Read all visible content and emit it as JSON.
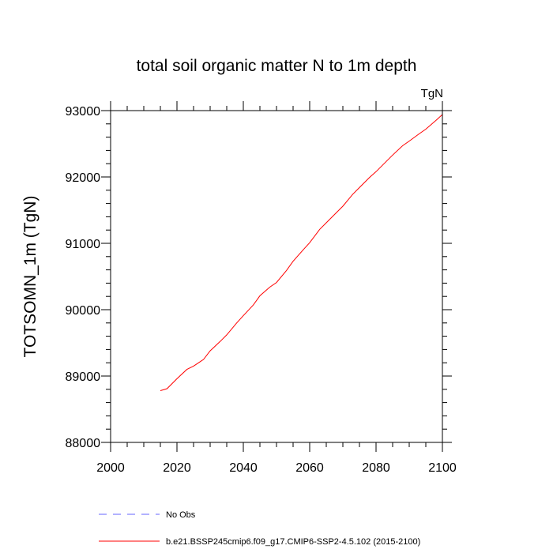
{
  "chart_data": {
    "type": "line",
    "title": "total soil organic matter N to 1m depth",
    "units": "TgN",
    "xlabel": "",
    "ylabel": "TOTSOMN_1m  (TgN)",
    "xlim": [
      2000,
      2100
    ],
    "ylim": [
      88000,
      93000
    ],
    "xticks": [
      2000,
      2020,
      2040,
      2060,
      2080,
      2100
    ],
    "yticks": [
      88000,
      89000,
      90000,
      91000,
      92000,
      93000
    ],
    "grid": false,
    "legend_position": "bottom",
    "series": [
      {
        "name": "b.e21.BSSP245cmip6.f09_g17.CMIP6-SSP2-4.5.102 (2015-2100)",
        "color": "#ff0000",
        "style": "solid",
        "x": [
          2015,
          2017,
          2020,
          2023,
          2025,
          2028,
          2030,
          2033,
          2035,
          2038,
          2040,
          2043,
          2045,
          2048,
          2050,
          2053,
          2055,
          2058,
          2060,
          2063,
          2065,
          2068,
          2070,
          2073,
          2075,
          2078,
          2080,
          2083,
          2085,
          2088,
          2090,
          2093,
          2095,
          2098,
          2100
        ],
        "y": [
          88780,
          88810,
          88960,
          89100,
          89150,
          89250,
          89380,
          89520,
          89620,
          89800,
          89910,
          90070,
          90210,
          90340,
          90410,
          90590,
          90730,
          90900,
          91010,
          91210,
          91310,
          91460,
          91560,
          91740,
          91840,
          91990,
          92080,
          92230,
          92330,
          92470,
          92540,
          92650,
          92720,
          92850,
          92940
        ]
      },
      {
        "name": "No Obs",
        "color": "#6666ff",
        "style": "dashed",
        "x": [],
        "y": []
      }
    ]
  }
}
